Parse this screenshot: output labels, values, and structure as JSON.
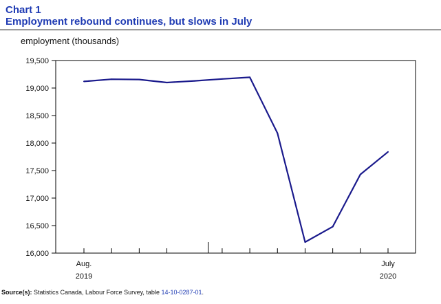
{
  "header": {
    "title_line1": "Chart 1",
    "title_line2": "Employment rebound continues, but slows in July"
  },
  "chart_data": {
    "type": "line",
    "ylabel": "employment (thousands)",
    "ylim": [
      16000,
      19500
    ],
    "yticks": [
      "19,500",
      "19,000",
      "18,500",
      "18,000",
      "17,500",
      "17,000",
      "16,500",
      "16,000"
    ],
    "ytick_values": [
      19500,
      19000,
      18500,
      18000,
      17500,
      17000,
      16500,
      16000
    ],
    "x": [
      "2019-08",
      "2019-09",
      "2019-10",
      "2019-11",
      "2019-12",
      "2020-01",
      "2020-02",
      "2020-03",
      "2020-04",
      "2020-05",
      "2020-06",
      "2020-07"
    ],
    "x_tick_labels": [
      {
        "month": "Aug.",
        "year": "2019"
      },
      {
        "month": "July",
        "year": "2020"
      }
    ],
    "series": [
      {
        "values": [
          19120,
          19160,
          19155,
          19100,
          19130,
          19165,
          19195,
          18180,
          16200,
          16480,
          17430,
          17840
        ]
      }
    ],
    "grid": false,
    "line_color": "#1a1a8c"
  },
  "source": {
    "label": "Source(s):",
    "text": " Statistics Canada, Labour Force Survey, table ",
    "table_id": "14-10-0287-01",
    "end": "."
  }
}
